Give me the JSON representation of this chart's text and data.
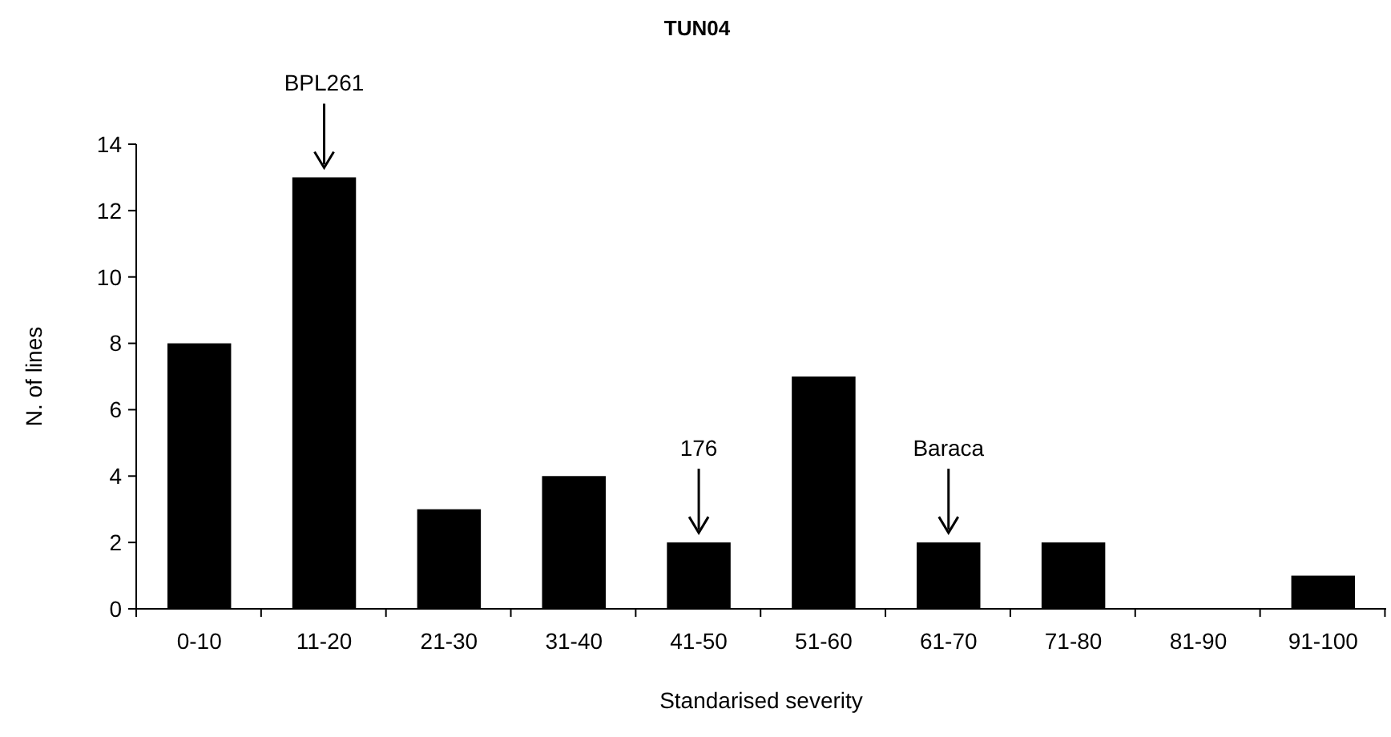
{
  "chart_data": {
    "type": "bar",
    "title": "TUN04",
    "xlabel": "Standarised severity",
    "ylabel": "N. of lines",
    "categories": [
      "0-10",
      "11-20",
      "21-30",
      "31-40",
      "41-50",
      "51-60",
      "61-70",
      "71-80",
      "81-90",
      "91-100"
    ],
    "values": [
      8,
      13,
      3,
      4,
      2,
      7,
      2,
      2,
      0,
      1
    ],
    "color": "#000000",
    "ylim": [
      0,
      14
    ],
    "yticks": [
      0,
      2,
      4,
      6,
      8,
      10,
      12,
      14
    ],
    "grid": false,
    "annotations": [
      {
        "text": "BPL261",
        "x": "11-20",
        "y": 13
      },
      {
        "text": "176",
        "x": "41-50",
        "y": 2
      },
      {
        "text": "Baraca",
        "x": "61-70",
        "y": 2
      }
    ]
  }
}
